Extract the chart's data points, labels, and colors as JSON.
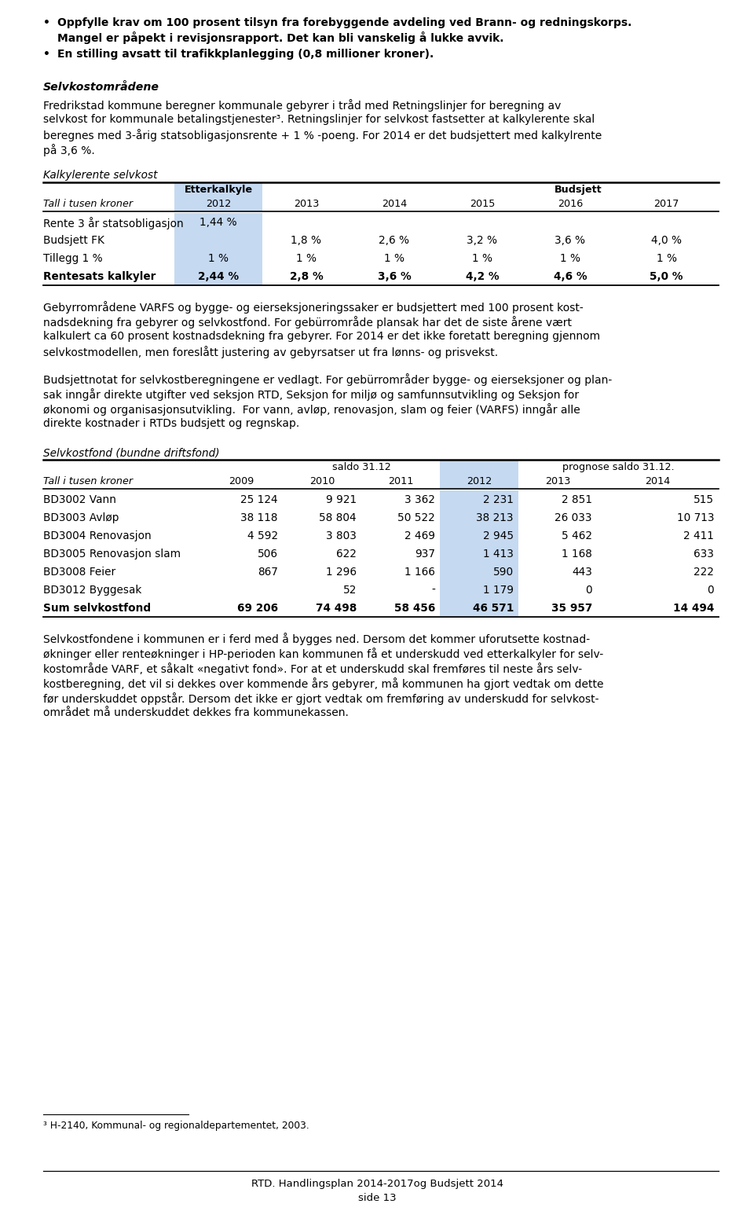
{
  "highlight_color": "#c5d9f1",
  "bullet1a": "Oppfylle krav om 100 prosent tilsyn fra forebyggende avdeling ved Brann- og redningskorps.",
  "bullet1b": "Mangel er påpekt i revisjonsrapport. Det kan bli vanskelig å lukke avvik.",
  "bullet2": "En stilling avsatt til trafikkplanlegging (0,8 millioner kroner).",
  "section_heading": "Selvkostområdene",
  "para1_lines": [
    "Fredrikstad kommune beregner kommunale gebyrer i tråd med Retningslinjer for beregning av",
    "selvkost for kommunale betalingstjenester³. Retningslinjer for selvkost fastsetter at kalkylerente skal",
    "beregnes med 3-årig statsobligasjonsrente + 1 % -poeng. For 2014 er det budsjettert med kalkylrente",
    "på 3,6 %."
  ],
  "t1_title": "Kalkylerente selvkost",
  "t1_col_label": "Tall i tusen kroner",
  "t1_header_etc": "Etterkalkyle",
  "t1_header_bud": "Budsjett",
  "t1_years": [
    "2012",
    "2013",
    "2014",
    "2015",
    "2016",
    "2017"
  ],
  "t1_rows": [
    [
      "Rente 3 år statsobligasjon",
      "1,44 %",
      "",
      "",
      "",
      "",
      ""
    ],
    [
      "Budsjett FK",
      "",
      "1,8 %",
      "2,6 %",
      "3,2 %",
      "3,6 %",
      "4,0 %"
    ],
    [
      "Tillegg 1 %",
      "1 %",
      "1 %",
      "1 %",
      "1 %",
      "1 %",
      "1 %"
    ],
    [
      "Rentesats kalkyler",
      "2,44 %",
      "2,8 %",
      "3,6 %",
      "4,2 %",
      "4,6 %",
      "5,0 %"
    ]
  ],
  "para2_lines": [
    "Gebyrrområdene VARFS og bygge- og eierseksjoneringssaker er budsjettert med 100 prosent kost-",
    "nadsdekning fra gebyrer og selvkostfond. For gebürrområde plansak har det de siste årene vært",
    "kalkulert ca 60 prosent kostnadsdekning fra gebyrer. For 2014 er det ikke foretatt beregning gjennom",
    "selvkostmodellen, men foreslått justering av gebyrsatser ut fra lønns- og prisvekst."
  ],
  "para3_lines": [
    "Budsjettnotat for selvkostberegningene er vedlagt. For gebürrområder bygge- og eierseksjoner og plan-",
    "sak inngår direkte utgifter ved seksjon RTD, Seksjon for miljø og samfunnsutvikling og Seksjon for",
    "økonomi og organisasjonsutvikling.  For vann, avløp, renovasjon, slam og feier (VARFS) inngår alle",
    "direkte kostnader i RTDs budsjett og regnskap."
  ],
  "t2_title": "Selvkostfond (bundne driftsfond)",
  "t2_col_label": "Tall i tusen kroner",
  "t2_saldo": "saldo 31.12",
  "t2_prognose": "prognose saldo 31.12.",
  "t2_years": [
    "2009",
    "2010",
    "2011",
    "2012",
    "2013",
    "2014"
  ],
  "t2_rows": [
    [
      "BD3002 Vann",
      "25 124",
      "9 921",
      "3 362",
      "2 231",
      "2 851",
      "515"
    ],
    [
      "BD3003 Avløp",
      "38 118",
      "58 804",
      "50 522",
      "38 213",
      "26 033",
      "10 713"
    ],
    [
      "BD3004 Renovasjon",
      "4 592",
      "3 803",
      "2 469",
      "2 945",
      "5 462",
      "2 411"
    ],
    [
      "BD3005 Renovasjon slam",
      "506",
      "622",
      "937",
      "1 413",
      "1 168",
      "633"
    ],
    [
      "BD3008 Feier",
      "867",
      "1 296",
      "1 166",
      "590",
      "443",
      "222"
    ],
    [
      "BD3012 Byggesak",
      "",
      "52",
      "-",
      "1 179",
      "0",
      "0"
    ],
    [
      "Sum selvkostfond",
      "69 206",
      "74 498",
      "58 456",
      "46 571",
      "35 957",
      "14 494"
    ]
  ],
  "para4_lines": [
    "Selvkostfondene i kommunen er i ferd med å bygges ned. Dersom det kommer uforutsette kostnad-",
    "økninger eller renteøkninger i HP-perioden kan kommunen få et underskudd ved etterkalkyler for selv-",
    "kostområde VARF, et såkalt «negativt fond». For at et underskudd skal fremføres til neste års selv-",
    "kostberegning, det vil si dekkes over kommende års gebyrer, må kommunen ha gjort vedtak om dette",
    "før underskuddet oppstår. Dersom det ikke er gjort vedtak om fremføring av underskudd for selvkost-",
    "området må underskuddet dekkes fra kommunekassen."
  ],
  "footnote": "³ H-2140, Kommunal- og regionaldepartementet, 2003.",
  "footer1": "RTD. Handlingsplan 2014-2017og Budsjett 2014",
  "footer2": "side 13"
}
